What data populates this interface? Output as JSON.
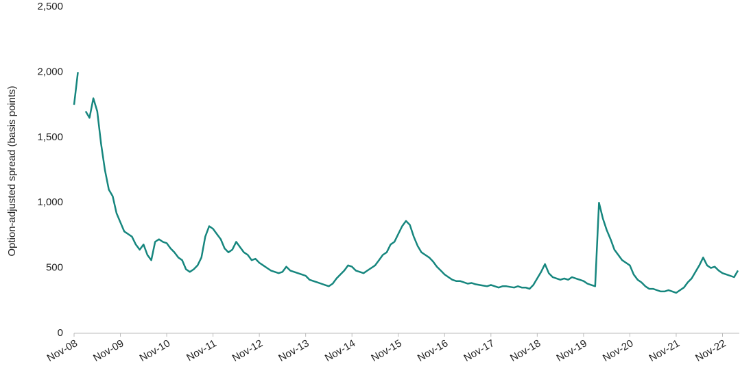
{
  "chart_data": {
    "type": "line",
    "y_label": "Option-adjusted spread (basis points)",
    "x": [
      "Nov-08",
      "Dec-08",
      "Jan-09",
      "Feb-09",
      "Mar-09",
      "Apr-09",
      "May-09",
      "Jun-09",
      "Jul-09",
      "Aug-09",
      "Sep-09",
      "Oct-09",
      "Nov-09",
      "Dec-09",
      "Jan-10",
      "Feb-10",
      "Mar-10",
      "Apr-10",
      "May-10",
      "Jun-10",
      "Jul-10",
      "Aug-10",
      "Sep-10",
      "Oct-10",
      "Nov-10",
      "Dec-10",
      "Jan-11",
      "Feb-11",
      "Mar-11",
      "Apr-11",
      "May-11",
      "Jun-11",
      "Jul-11",
      "Aug-11",
      "Sep-11",
      "Oct-11",
      "Nov-11",
      "Dec-11",
      "Jan-12",
      "Feb-12",
      "Mar-12",
      "Apr-12",
      "May-12",
      "Jun-12",
      "Jul-12",
      "Aug-12",
      "Sep-12",
      "Oct-12",
      "Nov-12",
      "Dec-12",
      "Jan-13",
      "Feb-13",
      "Mar-13",
      "Apr-13",
      "May-13",
      "Jun-13",
      "Jul-13",
      "Aug-13",
      "Sep-13",
      "Oct-13",
      "Nov-13",
      "Dec-13",
      "Jan-14",
      "Feb-14",
      "Mar-14",
      "Apr-14",
      "May-14",
      "Jun-14",
      "Jul-14",
      "Aug-14",
      "Sep-14",
      "Oct-14",
      "Nov-14",
      "Dec-14",
      "Jan-15",
      "Feb-15",
      "Mar-15",
      "Apr-15",
      "May-15",
      "Jun-15",
      "Jul-15",
      "Aug-15",
      "Sep-15",
      "Oct-15",
      "Nov-15",
      "Dec-15",
      "Jan-16",
      "Feb-16",
      "Mar-16",
      "Apr-16",
      "May-16",
      "Jun-16",
      "Jul-16",
      "Aug-16",
      "Sep-16",
      "Oct-16",
      "Nov-16",
      "Dec-16",
      "Jan-17",
      "Feb-17",
      "Mar-17",
      "Apr-17",
      "May-17",
      "Jun-17",
      "Jul-17",
      "Aug-17",
      "Sep-17",
      "Oct-17",
      "Nov-17",
      "Dec-17",
      "Jan-18",
      "Feb-18",
      "Mar-18",
      "Apr-18",
      "May-18",
      "Jun-18",
      "Jul-18",
      "Aug-18",
      "Sep-18",
      "Oct-18",
      "Nov-18",
      "Dec-18",
      "Jan-19",
      "Feb-19",
      "Mar-19",
      "Apr-19",
      "May-19",
      "Jun-19",
      "Jul-19",
      "Aug-19",
      "Sep-19",
      "Oct-19",
      "Nov-19",
      "Dec-19",
      "Jan-20",
      "Feb-20",
      "Mar-20",
      "Apr-20",
      "May-20",
      "Jun-20",
      "Jul-20",
      "Aug-20",
      "Sep-20",
      "Oct-20",
      "Nov-20",
      "Dec-20",
      "Jan-21",
      "Feb-21",
      "Mar-21",
      "Apr-21",
      "May-21",
      "Jun-21",
      "Jul-21",
      "Aug-21",
      "Sep-21",
      "Oct-21",
      "Nov-21",
      "Dec-21",
      "Jan-22",
      "Feb-22",
      "Mar-22",
      "Apr-22",
      "May-22",
      "Jun-22",
      "Jul-22",
      "Aug-22",
      "Sep-22",
      "Oct-22",
      "Nov-22",
      "Dec-22",
      "Jan-23",
      "Feb-23",
      "Mar-23"
    ],
    "values": [
      1750,
      2000,
      null,
      1700,
      1650,
      1800,
      1700,
      1450,
      1250,
      1100,
      1050,
      920,
      850,
      780,
      760,
      740,
      680,
      640,
      680,
      600,
      560,
      700,
      720,
      700,
      690,
      650,
      620,
      580,
      560,
      490,
      470,
      490,
      520,
      580,
      740,
      820,
      800,
      760,
      720,
      650,
      620,
      640,
      700,
      660,
      620,
      600,
      560,
      570,
      540,
      520,
      500,
      480,
      470,
      460,
      470,
      510,
      480,
      470,
      460,
      450,
      440,
      410,
      400,
      390,
      380,
      370,
      360,
      380,
      420,
      450,
      480,
      520,
      510,
      480,
      470,
      460,
      480,
      500,
      520,
      560,
      600,
      620,
      680,
      700,
      760,
      820,
      860,
      830,
      740,
      670,
      620,
      600,
      580,
      550,
      510,
      480,
      450,
      430,
      410,
      400,
      400,
      390,
      380,
      385,
      375,
      370,
      365,
      360,
      370,
      360,
      350,
      360,
      360,
      355,
      350,
      360,
      350,
      350,
      340,
      370,
      420,
      470,
      530,
      460,
      430,
      420,
      410,
      420,
      410,
      430,
      420,
      410,
      400,
      380,
      370,
      360,
      1000,
      880,
      790,
      720,
      640,
      600,
      560,
      540,
      520,
      450,
      410,
      390,
      360,
      340,
      340,
      330,
      320,
      320,
      330,
      320,
      310,
      330,
      350,
      390,
      420,
      470,
      520,
      580,
      520,
      500,
      510,
      480,
      460,
      450,
      440,
      430,
      480
    ],
    "color": "#16867e",
    "ylim": [
      0,
      2500
    ],
    "yticks": [
      0,
      {
        "value": 500,
        "label": "500"
      },
      {
        "value": 1000,
        "label": "1,000"
      },
      {
        "value": 1500,
        "label": "1,500"
      },
      {
        "value": 2000,
        "label": "2,000"
      },
      {
        "value": 2500,
        "label": "2,500"
      }
    ],
    "xticks": [
      "Nov-08",
      "Nov-09",
      "Nov-10",
      "Nov-11",
      "Nov-12",
      "Nov-13",
      "Nov-14",
      "Nov-15",
      "Nov-16",
      "Nov-17",
      "Nov-18",
      "Nov-19",
      "Nov-20",
      "Nov-21",
      "Nov-22"
    ]
  }
}
